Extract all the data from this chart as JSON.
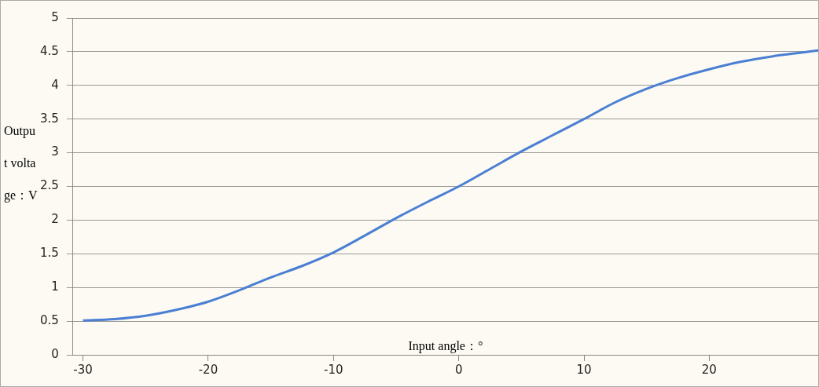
{
  "chart_data": {
    "type": "line",
    "xlabel": "Input angle：°",
    "ylabel": "Output voltage：V",
    "x": [
      -30,
      -27.5,
      -25,
      -22.5,
      -20,
      -17.5,
      -15,
      -12.5,
      -10,
      -7.5,
      -5,
      -2.5,
      0,
      2.5,
      5,
      7.5,
      10,
      12.5,
      15,
      17.5,
      20,
      22.5,
      25,
      27.5,
      28.7
    ],
    "series": [
      {
        "color": "#4a7fd4",
        "values": [
          0.51,
          0.53,
          0.58,
          0.67,
          0.79,
          0.96,
          1.15,
          1.32,
          1.52,
          1.77,
          2.03,
          2.27,
          2.5,
          2.76,
          3.02,
          3.26,
          3.5,
          3.75,
          3.95,
          4.11,
          4.24,
          4.35,
          4.43,
          4.49,
          4.52
        ]
      }
    ],
    "xlim": [
      -30.8,
      28.7
    ],
    "xticks": [
      -30,
      -20,
      -10,
      0,
      10,
      20
    ],
    "ylim": [
      0,
      5
    ],
    "yticks": [
      0,
      0.5,
      1,
      1.5,
      2,
      2.5,
      3,
      3.5,
      4,
      4.5,
      5
    ],
    "grid": "y",
    "legend": false,
    "marker": "none",
    "line_style": "solid"
  }
}
